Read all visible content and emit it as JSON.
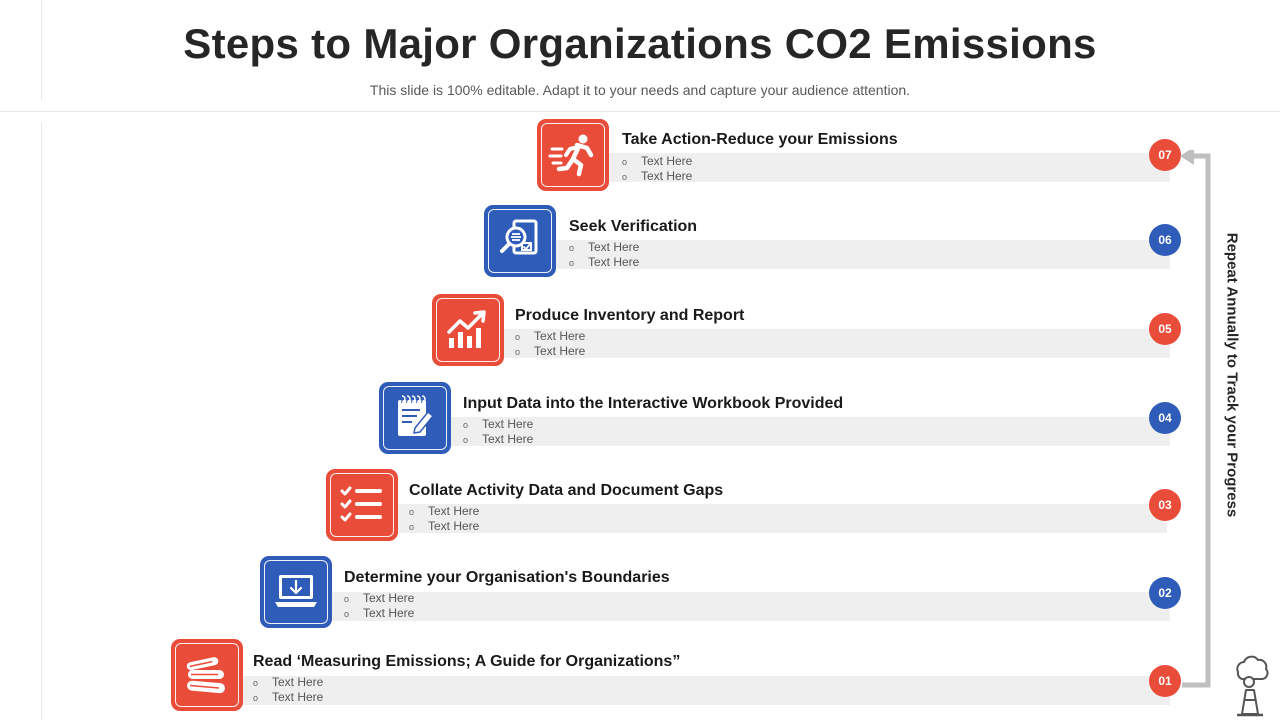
{
  "title": "Steps to Major Organizations CO2 Emissions",
  "subtitle": "This slide is 100% editable. Adapt it to your needs and capture your audience attention.",
  "side_label": "Repeat Annually to Track your Progress",
  "colors": {
    "red": "#ea4c3a",
    "blue": "#2e5cb8",
    "band": "#efefef",
    "arrow": "#bfbfbf"
  },
  "steps": [
    {
      "number": "07",
      "title": "Take Action-Reduce your Emissions",
      "bullets": [
        "Text Here",
        "Text Here"
      ],
      "color": "red",
      "icon": "running-man-icon"
    },
    {
      "number": "06",
      "title": "Seek Verification",
      "bullets": [
        "Text Here",
        "Text Here"
      ],
      "color": "blue",
      "icon": "document-magnifier-icon"
    },
    {
      "number": "05",
      "title": "Produce Inventory and Report",
      "bullets": [
        "Text Here",
        "Text Here"
      ],
      "color": "red",
      "icon": "growth-chart-icon"
    },
    {
      "number": "04",
      "title": "Input Data into the Interactive Workbook Provided",
      "bullets": [
        "Text Here",
        "Text Here"
      ],
      "color": "blue",
      "icon": "notepad-pencil-icon"
    },
    {
      "number": "03",
      "title": "Collate Activity Data and Document Gaps",
      "bullets": [
        "Text Here",
        "Text Here"
      ],
      "color": "red",
      "icon": "checklist-icon"
    },
    {
      "number": "02",
      "title": "Determine your Organisation's Boundaries",
      "bullets": [
        "Text Here",
        "Text Here"
      ],
      "color": "blue",
      "icon": "laptop-download-icon"
    },
    {
      "number": "01",
      "title": "Read ‘Measuring Emissions; A Guide for Organizations”",
      "bullets": [
        "Text Here",
        "Text Here"
      ],
      "color": "red",
      "icon": "books-icon"
    }
  ]
}
